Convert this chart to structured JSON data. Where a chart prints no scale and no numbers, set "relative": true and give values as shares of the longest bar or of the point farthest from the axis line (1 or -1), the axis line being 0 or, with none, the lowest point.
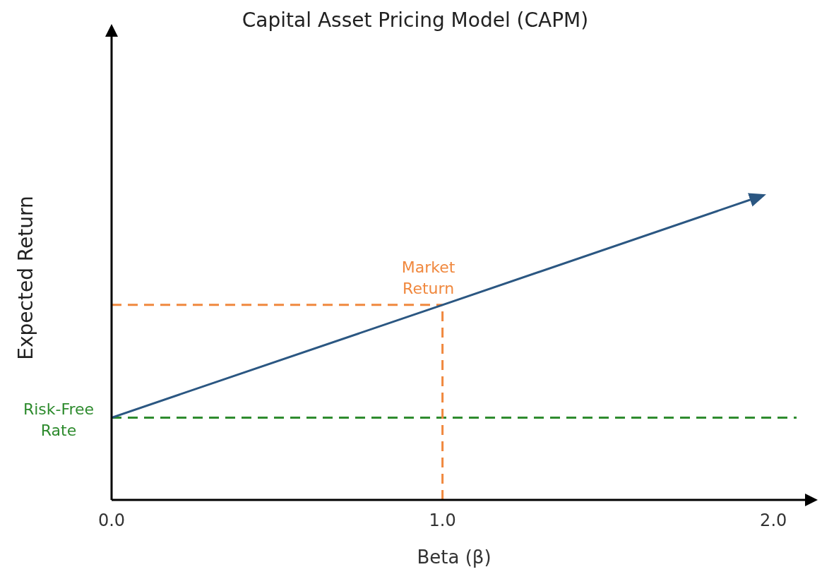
{
  "chart_data": {
    "type": "line",
    "title": "Capital Asset Pricing Model (CAPM)",
    "xlabel": "Beta (β)",
    "ylabel": "Expected Return",
    "relative": true,
    "x": [
      0,
      1,
      1.97
    ],
    "series": [
      {
        "color": "#2b5782",
        "values": [
          0.27,
          0.64,
          1
        ]
      }
    ],
    "xlim": [
      0,
      2.07
    ],
    "xticks": [
      {
        "value": 0,
        "label": "0.0"
      },
      {
        "value": 1,
        "label": "1.0"
      },
      {
        "value": 2,
        "label": "2.0"
      }
    ],
    "ref_lines": [
      {
        "axis": "y",
        "value": 0.27,
        "label": "Risk-Free Rate",
        "color": "#2e8b2e",
        "line_style": "dashed"
      },
      {
        "axis": "y",
        "value": 0.64,
        "label": "Market Return",
        "color": "#f0883e",
        "line_style": "dashed"
      },
      {
        "axis": "x",
        "value": 1,
        "label": null,
        "color": "#f0883e",
        "line_style": "dashed"
      }
    ]
  }
}
